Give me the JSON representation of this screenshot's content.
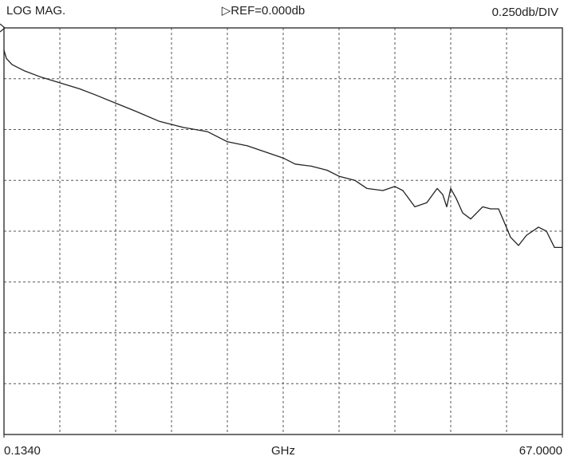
{
  "chart_data": {
    "type": "line",
    "title": "LOG MAG.",
    "reference": "▷REF=0.000db",
    "scale": "0.250db/DIV",
    "x_label": "GHz",
    "xlim": [
      0.134,
      67
    ],
    "xticks": [
      {
        "value": 0.134,
        "label": "0.1340"
      },
      {
        "value": 67,
        "label": "67.0000"
      }
    ],
    "ylim": [
      -2,
      0
    ],
    "color": "#222222",
    "grid": true,
    "series": [
      {
        "x": [
          0.134,
          0.42,
          1.09,
          2.52,
          4.43,
          6.82,
          9.21,
          11.12,
          13.51,
          15.9,
          18.76,
          21.63,
          24.49,
          26.88,
          29.27,
          32.13,
          33.57,
          35.0,
          36.91,
          38.82,
          40.25,
          42.16,
          43.6,
          45.51,
          46.94,
          47.9,
          49.33,
          50.76,
          52.0,
          52.67,
          53.15,
          53.63,
          54.3,
          55.06,
          56.02,
          57.45,
          58.4,
          59.36,
          60.79,
          61.75,
          62.7,
          64.13,
          65.09,
          66.05,
          67.0
        ],
        "values": [
          -0.11,
          -0.15,
          -0.18,
          -0.21,
          -0.24,
          -0.27,
          -0.3,
          -0.33,
          -0.37,
          -0.41,
          -0.46,
          -0.49,
          -0.51,
          -0.56,
          -0.58,
          -0.62,
          -0.64,
          -0.67,
          -0.68,
          -0.7,
          -0.73,
          -0.75,
          -0.79,
          -0.8,
          -0.78,
          -0.8,
          -0.88,
          -0.86,
          -0.79,
          -0.82,
          -0.88,
          -0.79,
          -0.84,
          -0.91,
          -0.94,
          -0.88,
          -0.89,
          -0.89,
          -1.03,
          -1.07,
          -1.02,
          -0.98,
          -1.0,
          -1.08,
          -1.08
        ]
      }
    ]
  }
}
